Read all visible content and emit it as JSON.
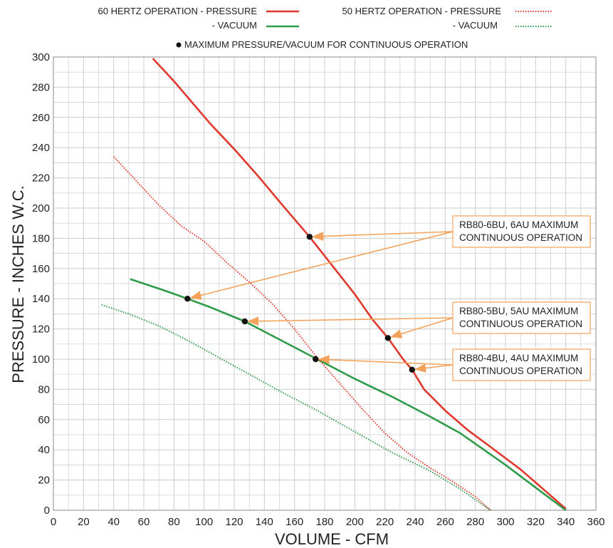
{
  "chart_data": {
    "type": "line",
    "xlabel": "VOLUME - CFM",
    "ylabel": "PRESSURE - INCHES W.C.",
    "xlim": [
      0,
      360
    ],
    "ylim": [
      0,
      300
    ],
    "x_ticks": [
      0,
      20,
      40,
      60,
      80,
      100,
      120,
      140,
      160,
      180,
      200,
      220,
      240,
      260,
      280,
      300,
      320,
      340,
      360
    ],
    "y_ticks": [
      0,
      20,
      40,
      60,
      80,
      100,
      120,
      140,
      160,
      180,
      200,
      220,
      240,
      260,
      280,
      300
    ],
    "grid": true,
    "legend": {
      "hz60_pressure": "60 HERTZ OPERATION - PRESSURE",
      "hz60_vacuum": "- VACUUM",
      "hz50_pressure": "50 HERTZ OPERATION - PRESSURE",
      "hz50_vacuum": "- VACUUM",
      "max_point": "MAXIMUM PRESSURE/VACUUM FOR CONTINUOUS OPERATION"
    },
    "series": [
      {
        "id": "hz60_pressure",
        "color": "#e0382c",
        "style": "solid",
        "points": [
          [
            66,
            299
          ],
          [
            80,
            284
          ],
          [
            92,
            270
          ],
          [
            104,
            256
          ],
          [
            120,
            239
          ],
          [
            136,
            221
          ],
          [
            152,
            202
          ],
          [
            170,
            181
          ],
          [
            185,
            162
          ],
          [
            200,
            143
          ],
          [
            212,
            126
          ],
          [
            222,
            114
          ],
          [
            232,
            100
          ],
          [
            238,
            93
          ],
          [
            246,
            80
          ],
          [
            260,
            66
          ],
          [
            275,
            53
          ],
          [
            290,
            42
          ],
          [
            310,
            27
          ],
          [
            325,
            14
          ],
          [
            340,
            1
          ]
        ]
      },
      {
        "id": "hz60_vacuum",
        "color": "#2e9b48",
        "style": "solid",
        "points": [
          [
            51,
            153
          ],
          [
            60,
            150
          ],
          [
            75,
            145
          ],
          [
            89,
            140
          ],
          [
            105,
            134
          ],
          [
            127,
            125
          ],
          [
            150,
            113
          ],
          [
            175,
            100
          ],
          [
            200,
            87
          ],
          [
            225,
            75
          ],
          [
            250,
            62
          ],
          [
            270,
            51
          ],
          [
            300,
            30
          ],
          [
            320,
            15
          ],
          [
            340,
            0
          ]
        ]
      },
      {
        "id": "hz50_pressure",
        "color": "#e0382c",
        "style": "dotted",
        "points": [
          [
            40,
            234
          ],
          [
            55,
            218
          ],
          [
            70,
            202
          ],
          [
            85,
            188
          ],
          [
            100,
            178
          ],
          [
            115,
            164
          ],
          [
            130,
            151
          ],
          [
            145,
            137
          ],
          [
            160,
            120
          ],
          [
            175,
            101
          ],
          [
            190,
            84
          ],
          [
            205,
            67
          ],
          [
            220,
            51
          ],
          [
            235,
            38
          ],
          [
            250,
            28
          ],
          [
            265,
            19
          ],
          [
            280,
            9
          ],
          [
            290,
            0
          ]
        ]
      },
      {
        "id": "hz50_vacuum",
        "color": "#2e9b48",
        "style": "dotted",
        "points": [
          [
            32,
            136
          ],
          [
            50,
            130
          ],
          [
            70,
            122
          ],
          [
            90,
            112
          ],
          [
            110,
            101
          ],
          [
            130,
            90
          ],
          [
            150,
            79
          ],
          [
            175,
            66
          ],
          [
            200,
            52
          ],
          [
            225,
            38
          ],
          [
            250,
            26
          ],
          [
            270,
            14
          ],
          [
            290,
            0
          ]
        ]
      }
    ],
    "max_points": [
      [
        170,
        181
      ],
      [
        89,
        140
      ],
      [
        127,
        125
      ],
      [
        222,
        114
      ],
      [
        174,
        100
      ],
      [
        238,
        93
      ]
    ],
    "annotations": [
      {
        "lines": [
          "RB80-6BU, 6AU MAXIMUM",
          "CONTINUOUS OPERATION"
        ],
        "targets": [
          [
            170,
            181
          ],
          [
            89,
            140
          ]
        ]
      },
      {
        "lines": [
          "RB80-5BU, 5AU MAXIMUM",
          "CONTINUOUS OPERATION"
        ],
        "targets": [
          [
            222,
            114
          ],
          [
            127,
            125
          ]
        ]
      },
      {
        "lines": [
          "RB80-4BU, 4AU MAXIMUM",
          "CONTINUOUS OPERATION"
        ],
        "targets": [
          [
            238,
            93
          ],
          [
            174,
            100
          ]
        ]
      }
    ],
    "colors": {
      "pressure": "#e0382c",
      "vacuum": "#2e9b48",
      "annotation": "#f4a25a",
      "grid": "#cccccc"
    }
  }
}
